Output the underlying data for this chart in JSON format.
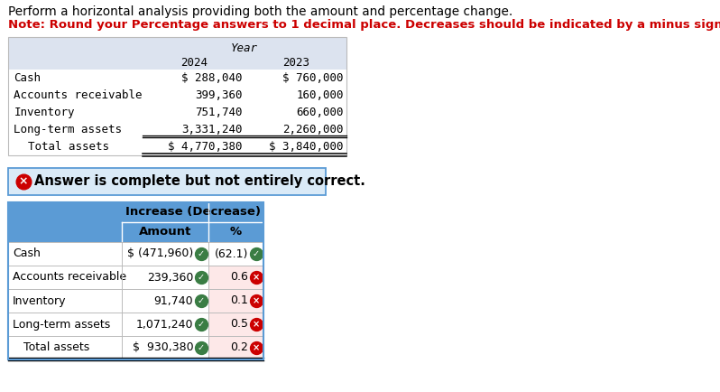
{
  "title_line1": "Perform a horizontal analysis providing both the amount and percentage change.",
  "title_line2": "Note: Round your Percentage answers to 1 decimal place. Decreases should be indicated by a minus sign.",
  "top_table": {
    "header_year": "Year",
    "col_headers": [
      "2024",
      "2023"
    ],
    "rows": [
      [
        "Cash",
        "$ 288,040",
        "$ 760,000"
      ],
      [
        "Accounts receivable",
        "399,360",
        "160,000"
      ],
      [
        "Inventory",
        "751,740",
        "660,000"
      ],
      [
        "Long-term assets",
        "3,331,240",
        "2,260,000"
      ],
      [
        "Total assets",
        "$ 4,770,380",
        "$ 3,840,000"
      ]
    ],
    "total_row_index": 4
  },
  "answer_banner": "Answer is complete but not entirely correct.",
  "bottom_table": {
    "header1": "Increase (Decrease)",
    "col1": "Amount",
    "col2": "%",
    "rows": [
      [
        "Cash",
        "$ (471,960)",
        "(62.1)",
        true,
        true
      ],
      [
        "Accounts receivable",
        "239,360",
        "0.6",
        true,
        false
      ],
      [
        "Inventory",
        "91,740",
        "0.1",
        true,
        false
      ],
      [
        "Long-term assets",
        "1,071,240",
        "0.5",
        true,
        false
      ],
      [
        "Total assets",
        "$  930,380",
        "0.2",
        true,
        false
      ]
    ],
    "total_row_index": 4
  },
  "colors": {
    "top_table_header_bg": "#dce3ef",
    "bottom_table_header_bg": "#5b9bd5",
    "bottom_table_row_correct_bg": "#ffffff",
    "bottom_table_row_wrong_bg": "#fde8e8",
    "answer_banner_bg": "#daeaf7",
    "answer_banner_border": "#5b9bd5",
    "red_note_color": "#cc0000",
    "green_check": "#3a7d44",
    "red_x": "#cc0000",
    "grid_line": "#bbbbbb"
  }
}
